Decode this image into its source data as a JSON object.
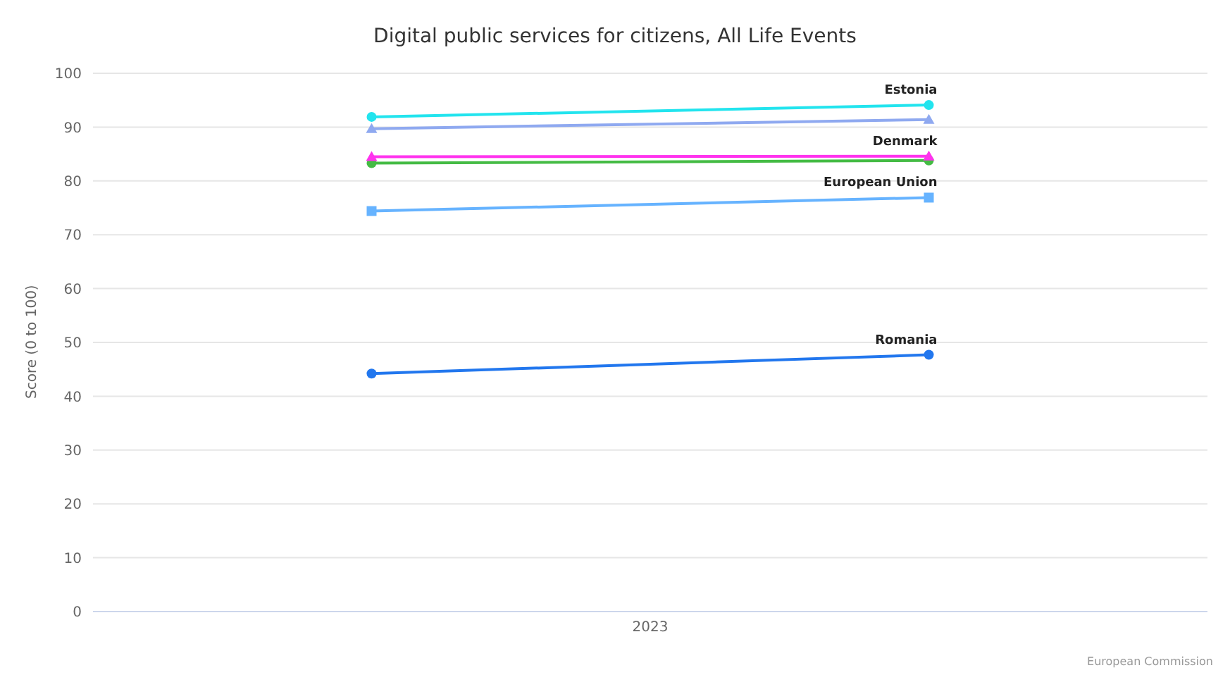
{
  "chart_data": {
    "type": "line",
    "title": "Digital public services for citizens, All Life Events",
    "ylabel": "Score (0 to 100)",
    "categories": [
      null,
      null
    ],
    "ylim": [
      0,
      100
    ],
    "yticks": [
      0,
      10,
      20,
      30,
      40,
      50,
      60,
      70,
      80,
      90,
      100
    ],
    "grid": "y",
    "legend": false,
    "series": [
      {
        "name": "Estonia",
        "color": "#22e4ee",
        "marker": "circle",
        "values": [
          91.9,
          94.1
        ]
      },
      {
        "color": "#8fa9f0",
        "marker": "triangle",
        "values": [
          89.7,
          91.4
        ]
      },
      {
        "name": "Denmark",
        "color": "#ff33ee",
        "marker": "triangle",
        "values": [
          84.5,
          84.6
        ]
      },
      {
        "color": "#44bb44",
        "marker": "circle",
        "values": [
          83.3,
          83.8
        ]
      },
      {
        "name": "European Union",
        "color": "#66b3ff",
        "marker": "square",
        "values": [
          74.4,
          76.9
        ]
      },
      {
        "name": "Romania",
        "color": "#2277ee",
        "marker": "circle",
        "values": [
          44.2,
          47.7
        ]
      }
    ],
    "annotations": [
      "2023",
      "European Commission"
    ]
  }
}
